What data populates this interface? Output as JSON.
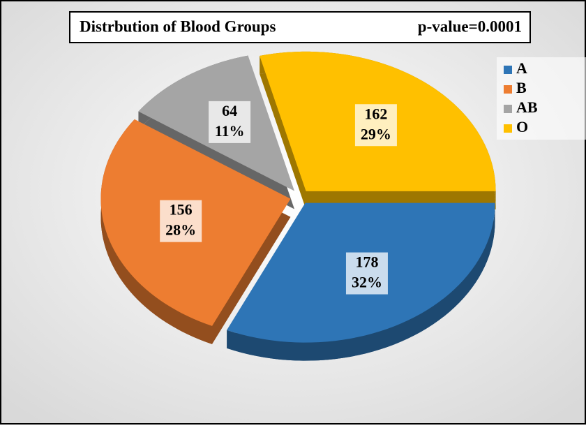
{
  "chart_data": {
    "type": "pie",
    "title": "Distrbution of Blood Groups",
    "annotation": "p-value=0.0001",
    "categories": [
      "A",
      "B",
      "AB",
      "O"
    ],
    "values": [
      178,
      156,
      64,
      162
    ],
    "percents": [
      32,
      28,
      11,
      29
    ],
    "percent_labels": [
      "32%",
      "28%",
      "11%",
      "29%"
    ],
    "colors": [
      "#2e75b6",
      "#ed7d31",
      "#a5a5a5",
      "#ffc000"
    ],
    "legend": "top-right"
  }
}
